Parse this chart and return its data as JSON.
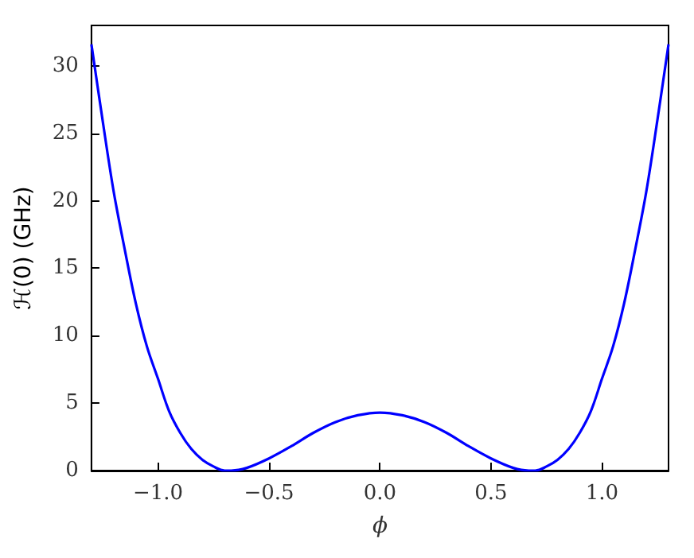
{
  "chart_data": {
    "type": "line",
    "xlabel": "ϕ",
    "ylabel": "ℋ(0) (GHz)",
    "x": [
      -1.3,
      -1.25,
      -1.2,
      -1.15,
      -1.1,
      -1.05,
      -1.0,
      -0.95,
      -0.9,
      -0.85,
      -0.8,
      -0.75,
      -0.7,
      -0.67,
      -0.6,
      -0.5,
      -0.4,
      -0.3,
      -0.2,
      -0.1,
      0,
      0.1,
      0.2,
      0.3,
      0.4,
      0.5,
      0.6,
      0.67,
      0.7,
      0.75,
      0.8,
      0.85,
      0.9,
      0.95,
      1.0,
      1.05,
      1.1,
      1.15,
      1.2,
      1.25,
      1.3
    ],
    "series": [
      {
        "color": "#0000ff",
        "values": [
          31.6,
          26.0,
          20.7,
          16.4,
          12.4,
          9.2,
          6.8,
          4.4,
          2.8,
          1.6,
          0.8,
          0.3,
          0,
          0,
          0.2,
          0.9,
          1.8,
          2.8,
          3.6,
          4.1,
          4.3,
          4.1,
          3.6,
          2.8,
          1.8,
          0.9,
          0.2,
          0,
          0,
          0.3,
          0.8,
          1.6,
          2.8,
          4.4,
          6.8,
          9.2,
          12.4,
          16.4,
          20.7,
          26.0,
          31.6
        ]
      }
    ],
    "xlim": [
      -1.3,
      1.3
    ],
    "xticks": [
      {
        "value": -1.0,
        "label": "−1.0"
      },
      {
        "value": -0.5,
        "label": "−0.5"
      },
      {
        "value": 0,
        "label": "0.0"
      },
      {
        "value": 0.5,
        "label": "0.5"
      },
      {
        "value": 1.0,
        "label": "1.0"
      }
    ],
    "ylim": [
      0,
      33
    ],
    "yticks": [
      0,
      5,
      10,
      15,
      20,
      25,
      30
    ],
    "grid": false,
    "marker": "none",
    "line_style": "solid"
  }
}
